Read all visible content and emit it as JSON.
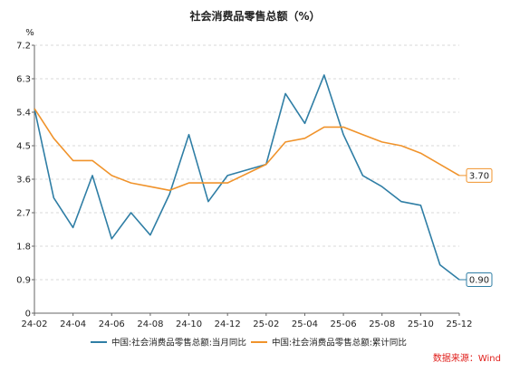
{
  "chart_data": {
    "type": "line",
    "title": "社会消费品零售总额（%）",
    "unit_label": "%",
    "source": "数据来源：Wind",
    "ylim": [
      0,
      7.2
    ],
    "y_ticks": [
      "0",
      "0.9",
      "1.8",
      "2.7",
      "3.6",
      "4.5",
      "5.4",
      "6.3",
      "7.2"
    ],
    "x": [
      "24-02",
      "24-03",
      "24-04",
      "24-05",
      "24-06",
      "24-07",
      "24-08",
      "24-09",
      "24-10",
      "24-11",
      "24-12",
      "25-01",
      "25-02",
      "25-03",
      "25-04",
      "25-05",
      "25-06",
      "25-07",
      "25-08",
      "25-09",
      "25-10",
      "25-11",
      "25-12"
    ],
    "x_tick_labels": [
      "24-02",
      "24-04",
      "24-06",
      "24-08",
      "24-10",
      "24-12",
      "25-02",
      "25-04",
      "25-06",
      "25-08",
      "25-10",
      "25-12"
    ],
    "grid": true,
    "legend_position": "bottom",
    "series": [
      {
        "name": "中国:社会消费品零售总额:当月同比",
        "color": "#2f7ea5",
        "values": [
          5.5,
          3.1,
          2.3,
          3.7,
          2.0,
          2.7,
          2.1,
          3.2,
          4.8,
          3.0,
          3.7,
          null,
          4.0,
          5.9,
          5.1,
          6.4,
          4.8,
          3.7,
          3.4,
          3.0,
          2.9,
          1.3,
          0.9
        ],
        "end_label": "0.90"
      },
      {
        "name": "中国:社会消费品零售总额:累计同比",
        "color": "#f0932b",
        "values": [
          5.5,
          4.7,
          4.1,
          4.1,
          3.7,
          3.5,
          3.4,
          3.3,
          3.5,
          3.5,
          3.5,
          null,
          4.0,
          4.6,
          4.7,
          5.0,
          5.0,
          4.8,
          4.6,
          4.5,
          4.3,
          4.0,
          3.7
        ],
        "end_label": "3.70"
      }
    ]
  }
}
